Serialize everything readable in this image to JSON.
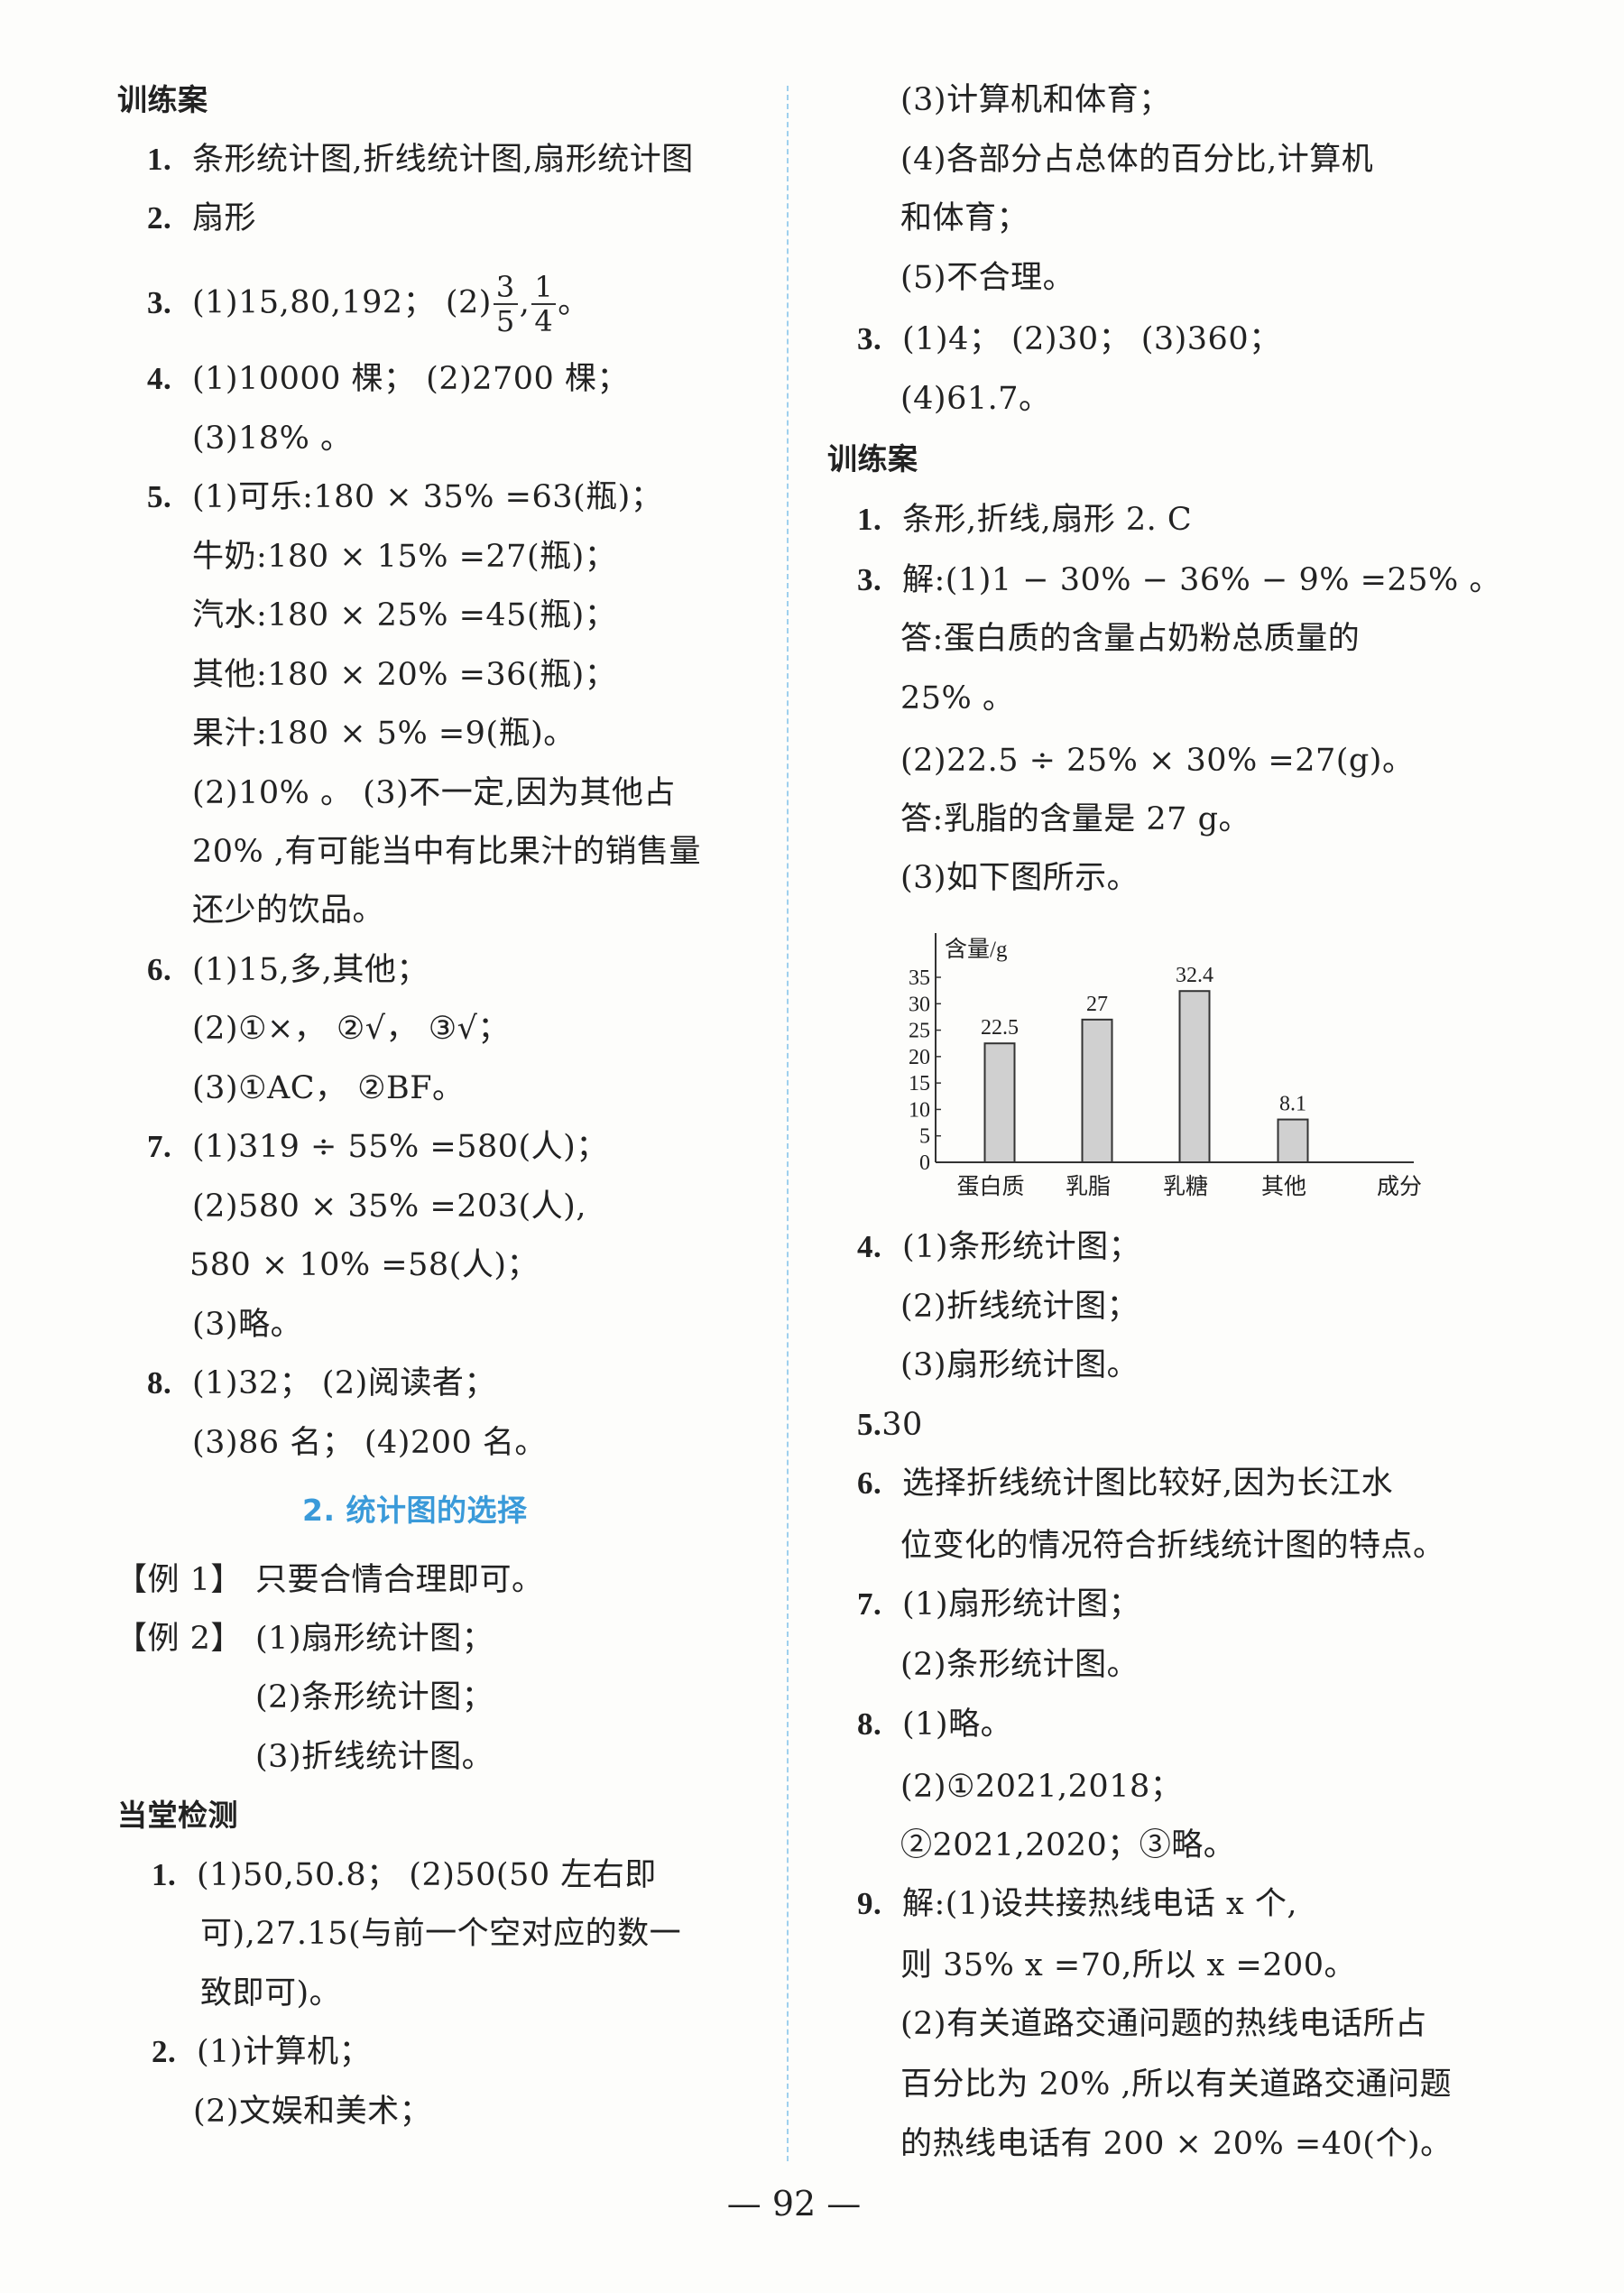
{
  "left": {
    "h1": "训练案",
    "q1": {
      "num": "1.",
      "text": "条形统计图,折线统计图,扇形统计图"
    },
    "q2": {
      "num": "2.",
      "text": "扇形"
    },
    "q3": {
      "num": "3.",
      "prefix": "(1)15,80,192；  (2)",
      "f1n": "3",
      "f1d": "5",
      "sep": ",",
      "f2n": "1",
      "f2d": "4",
      "end": "。"
    },
    "q4": {
      "num": "4.",
      "text": "(1)10000 棵；  (2)2700 棵；"
    },
    "q4b": "(3)18% 。",
    "q5": {
      "num": "5.",
      "text": "(1)可乐:180 × 35%  =63(瓶)；"
    },
    "q5b": "牛奶:180 × 15%  =27(瓶)；",
    "q5c": "汽水:180 × 25%  =45(瓶)；",
    "q5d": "其他:180 × 20%  =36(瓶)；",
    "q5e": "果汁:180 × 5%  =9(瓶)。",
    "q5f": "(2)10% 。   (3)不一定,因为其他占",
    "q5g": "20% ,有可能当中有比果汁的销售量",
    "q5h": "还少的饮品。",
    "q6": {
      "num": "6.",
      "text": "(1)15,多,其他；"
    },
    "q6b": "(2)①×，  ②√，  ③√；",
    "q6c": "(3)①AC，  ②BF。",
    "q7": {
      "num": "7.",
      "text": "(1)319 ÷ 55%  =580(人)；"
    },
    "q7b": "(2)580 × 35%  =203(人),",
    "q7c": "580 × 10%  =58(人)；",
    "q7d": "(3)略。",
    "q8": {
      "num": "8.",
      "text": "(1)32；  (2)阅读者；"
    },
    "q8b": "(3)86 名；  (4)200 名。",
    "section": "2.  统计图的选择",
    "ex1": {
      "label": "【例 1】",
      "text": "只要合情合理即可。"
    },
    "ex2": {
      "label": "【例 2】",
      "text": "(1)扇形统计图；"
    },
    "ex2b": "(2)条形统计图；",
    "ex2c": "(3)折线统计图。",
    "h2": "当堂检测",
    "d1": {
      "num": "1.",
      "text": "(1)50,50.8；  (2)50(50 左右即"
    },
    "d1b": "可),27.15(与前一个空对应的数一",
    "d1c": "致即可)。",
    "d2": {
      "num": "2.",
      "text": "(1)计算机；"
    },
    "d2b": "(2)文娱和美术；"
  },
  "right": {
    "r1": "(3)计算机和体育；",
    "r2": "(4)各部分占总体的百分比,计算机",
    "r3": "和体育；",
    "r4": "(5)不合理。",
    "q3": {
      "num": "3.",
      "text": "(1)4；  (2)30；  (3)360；"
    },
    "q3b": "(4)61.7。",
    "h1": "训练案",
    "t1": {
      "num": "1.",
      "text": "条形,折线,扇形   2. C"
    },
    "t3": {
      "num": "3.",
      "text": "解:(1)1 − 30%  − 36%  − 9%  =25% 。"
    },
    "t3b": "答:蛋白质的含量占奶粉总质量的",
    "t3c": "25% 。",
    "t3d": "(2)22.5 ÷ 25%  × 30%  =27(g)。",
    "t3e": "答:乳脂的含量是 27 g。",
    "t3f": "(3)如下图所示。",
    "t4": {
      "num": "4.",
      "text": "(1)条形统计图；"
    },
    "t4b": "(2)折线统计图；",
    "t4c": "(3)扇形统计图。",
    "t5": {
      "num": "5.",
      "text": "30"
    },
    "t6": {
      "num": "6.",
      "text": "选择折线统计图比较好,因为长江水"
    },
    "t6b": "位变化的情况符合折线统计图的特点。",
    "t7": {
      "num": "7.",
      "text": "(1)扇形统计图；"
    },
    "t7b": "(2)条形统计图。",
    "t8": {
      "num": "8.",
      "text": "(1)略。"
    },
    "t8b": "(2)①2021,2018；",
    "t8c": "②2021,2020；③略。",
    "t9": {
      "num": "9.",
      "text": "解:(1)设共接热线电话 x 个,"
    },
    "t9b": "则 35% x =70,所以 x =200。",
    "t9c": "(2)有关道路交通问题的热线电话所占",
    "t9d": "百分比为 20% ,所以有关道路交通问题",
    "t9e": "的热线电话有 200 × 20%  =40(个)。"
  },
  "chart_data": {
    "type": "bar",
    "categories": [
      "蛋白质",
      "乳脂",
      "乳糖",
      "其他"
    ],
    "values": [
      22.5,
      27,
      32.4,
      8.1
    ],
    "value_labels": [
      "22.5",
      "27",
      "32.4",
      "8.1"
    ],
    "ylabel": "含量/g",
    "xlabel": "成分",
    "yticks": [
      "0",
      "5",
      "10",
      "15",
      "20",
      "25",
      "30",
      "35"
    ],
    "ylim": [
      0,
      35
    ],
    "grid": false,
    "bar_color": "#d0d0d0"
  },
  "page_number": "— 92 —"
}
